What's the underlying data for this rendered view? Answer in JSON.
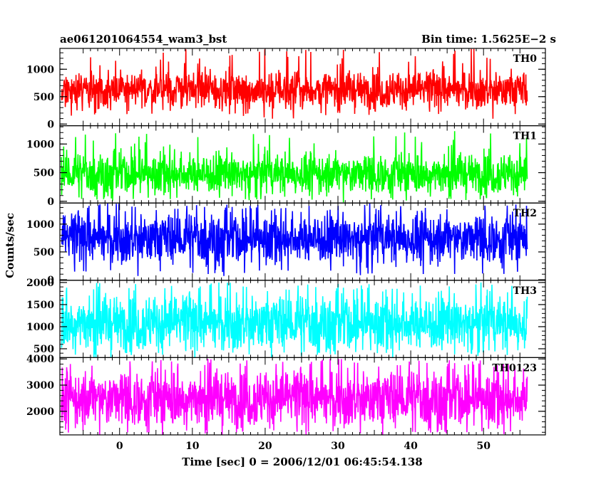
{
  "header": {
    "title": "ae061201064554_wam3_bst",
    "bin_time": "Bin time: 1.5625E−2 s"
  },
  "chart_data": {
    "type": "line",
    "xlabel": "Time [sec] 0 = 2006/12/01 06:45:54.138",
    "ylabel": "Counts/sec",
    "xlim": [
      -8.2,
      58.5
    ],
    "data_x_range": [
      -8.0,
      56.0
    ],
    "x_ticks": [
      0,
      10,
      20,
      30,
      40,
      50
    ],
    "x_tick_labels": [
      "0",
      "10",
      "20",
      "30",
      "40",
      "50"
    ],
    "grid": false,
    "panels": [
      {
        "name": "TH0",
        "color": "#ff0000",
        "ylim": [
          -30,
          1380
        ],
        "y_ticks": [
          0,
          500,
          1000
        ],
        "y_tick_labels": [
          "0",
          "500",
          "1000"
        ],
        "mean": 620,
        "low_envelope": 280,
        "high_envelope": 1000,
        "peak": 1380
      },
      {
        "name": "TH1",
        "color": "#00ff00",
        "ylim": [
          -30,
          1320
        ],
        "y_ticks": [
          0,
          500,
          1000
        ],
        "y_tick_labels": [
          "0",
          "500",
          "1000"
        ],
        "mean": 480,
        "low_envelope": 70,
        "high_envelope": 880,
        "peak": 1250
      },
      {
        "name": "TH2",
        "color": "#0000ff",
        "ylim": [
          -10,
          1380
        ],
        "y_ticks": [
          0,
          500,
          1000
        ],
        "y_tick_labels": [
          "0",
          "500",
          "1000"
        ],
        "mean": 740,
        "low_envelope": 180,
        "high_envelope": 1250,
        "peak": 1370
      },
      {
        "name": "TH3",
        "color": "#00ffff",
        "ylim": [
          300,
          2050
        ],
        "y_ticks": [
          500,
          1000,
          1500,
          2000
        ],
        "y_tick_labels": [
          "500",
          "1000",
          "1500",
          "2000"
        ],
        "mean": 1080,
        "low_envelope": 480,
        "high_envelope": 1800,
        "peak": 2000
      },
      {
        "name": "TH0123",
        "color": "#ff00ff",
        "ylim": [
          1100,
          4050
        ],
        "y_ticks": [
          2000,
          3000,
          4000
        ],
        "y_tick_labels": [
          "2000",
          "3000",
          "4000"
        ],
        "mean": 2480,
        "low_envelope": 1250,
        "high_envelope": 3700,
        "peak": 4000
      }
    ]
  }
}
